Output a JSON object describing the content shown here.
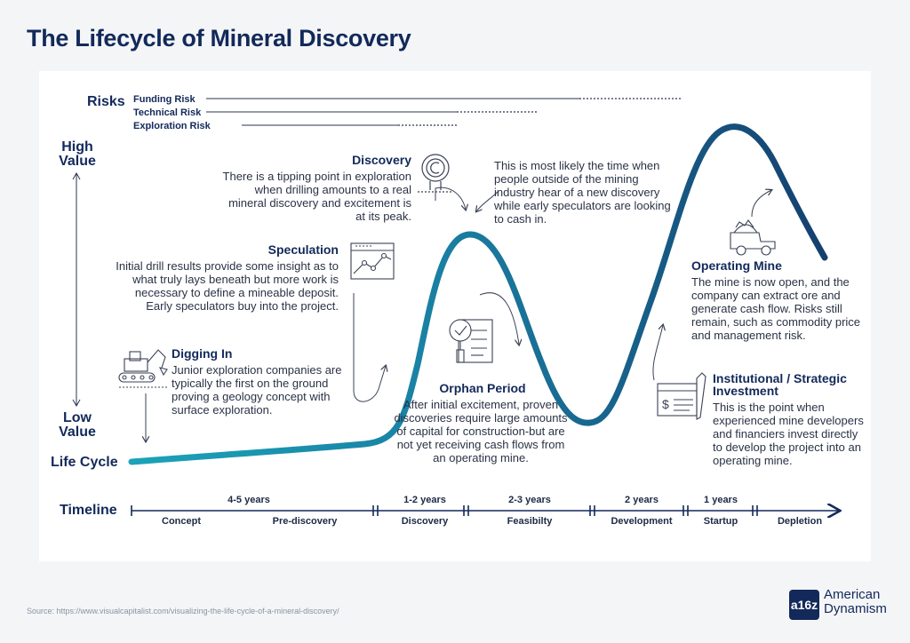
{
  "title": "The Lifecycle of Mineral Discovery",
  "risks": {
    "label": "Risks",
    "items": [
      {
        "name": "Funding Risk"
      },
      {
        "name": "Technical Risk"
      },
      {
        "name": "Exploration Risk"
      }
    ]
  },
  "axis": {
    "high": "High Value",
    "low": "Low Value",
    "lifecycle": "Life Cycle"
  },
  "stages": {
    "discovery": {
      "title": "Discovery",
      "body": "There is a tipping point in exploration when drilling amounts to a real mineral discovery and excitement is at its peak."
    },
    "discovery_note": {
      "body": "This is most likely the time when people outside of the mining industry hear of a new discovery while early speculators are looking to cash in."
    },
    "speculation": {
      "title": "Speculation",
      "body": "Initial drill results provide some insight as to what truly lays beneath but more work is necessary to define a mineable deposit. Early speculators buy into the project."
    },
    "digging_in": {
      "title": "Digging In",
      "body": "Junior exploration companies are typically the first on the ground proving a geology concept with surface exploration."
    },
    "orphan": {
      "title": "Orphan Period",
      "body": "After initial excitement, proven discoveries require large amounts of capital for construction-but are not yet receiving cash flows from an operating mine."
    },
    "operating": {
      "title": "Operating Mine",
      "body": "The mine is now open, and the company can extract ore and generate cash flow. Risks still remain, such as commodity price and management risk."
    },
    "institutional": {
      "title": "Institutional / Strategic Investment",
      "body": "This is the point when experienced mine developers and financiers invest directly to develop the project into an operating mine."
    }
  },
  "timeline": {
    "label": "Timeline",
    "phases": [
      {
        "name": "Concept",
        "duration": ""
      },
      {
        "name": "Pre-discovery",
        "duration": "4-5 years"
      },
      {
        "name": "Discovery",
        "duration": "1-2 years"
      },
      {
        "name": "Feasibilty",
        "duration": "2-3 years"
      },
      {
        "name": "Development",
        "duration": "2 years"
      },
      {
        "name": "Startup",
        "duration": "1 years"
      },
      {
        "name": "Depletion",
        "duration": ""
      }
    ]
  },
  "source": "Source: https://www.visualcapitalist.com/visualizing-the-life-cycle-of-a-mineral-discovery/",
  "brand": {
    "mark": "a16z",
    "line1": "American",
    "line2": "Dynamism"
  },
  "icons": [
    "excavator-icon",
    "chart-icon",
    "target-icon",
    "document-search-icon",
    "money-check-icon",
    "dump-truck-icon"
  ],
  "colors": {
    "navy": "#12295a",
    "teal": "#1ba3b8",
    "curve_end": "#14406f"
  }
}
